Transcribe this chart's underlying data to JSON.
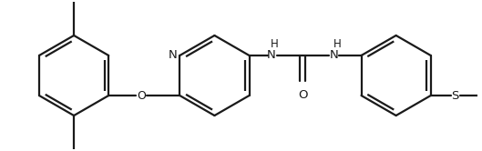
{
  "bg_color": "#ffffff",
  "line_color": "#1a1a1a",
  "line_width": 1.6,
  "figsize": [
    5.29,
    1.66
  ],
  "dpi": 100,
  "xlim": [
    0.0,
    10.6
  ],
  "ylim": [
    0.0,
    3.32
  ]
}
